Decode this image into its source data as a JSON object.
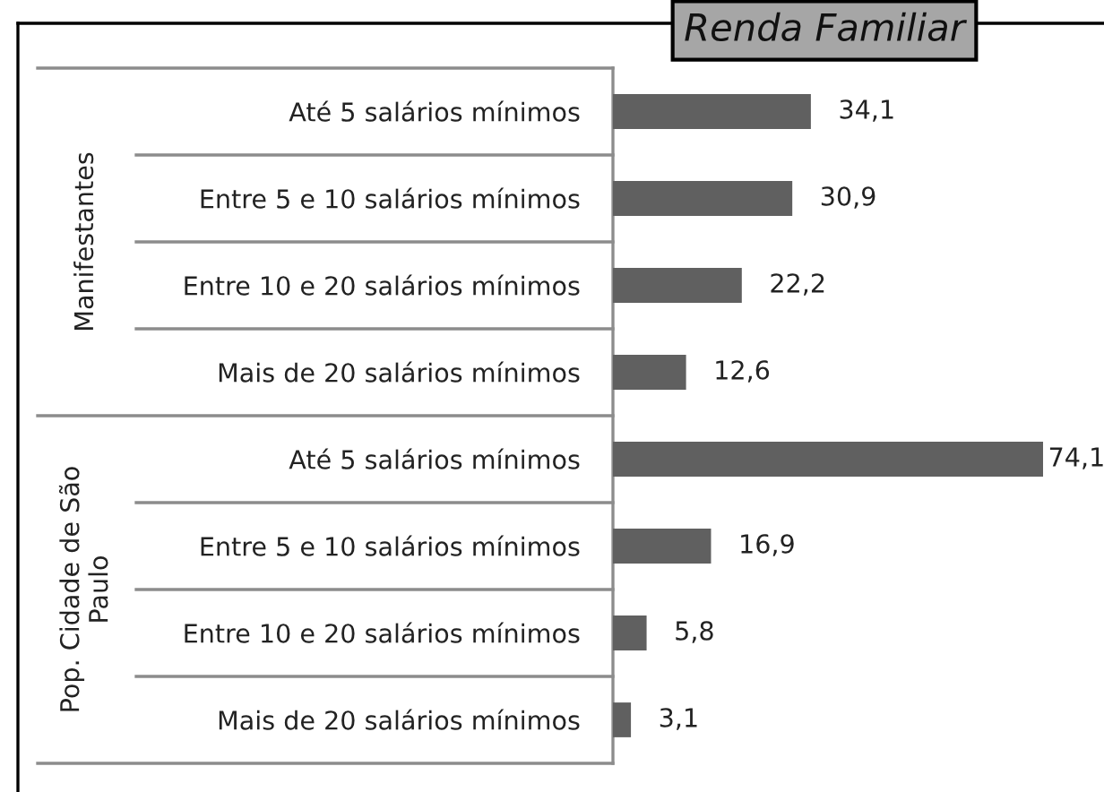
{
  "chart_data": {
    "type": "bar",
    "orientation": "horizontal",
    "title": "Renda Familiar",
    "categories": [
      "Até 5 salários mínimos",
      "Entre 5 e 10 salários mínimos",
      "Entre 10 e 20 salários mínimos",
      "Mais de 20 salários mínimos",
      "Até 5 salários mínimos",
      "Entre 5 e 10 salários mínimos",
      "Entre 10 e 20 salários mínimos",
      "Mais de 20 salários mínimos"
    ],
    "color": "#606060",
    "values": [
      34.1,
      30.9,
      22.2,
      12.6,
      74.1,
      16.9,
      5.8,
      3.1
    ],
    "value_labels": [
      "34,1",
      "30,9",
      "22,2",
      "12,6",
      "74,1",
      "16,9",
      "5,8",
      "3,1"
    ],
    "annotations": [
      "Manifestantes",
      "Pop. Cidade de São Paulo"
    ]
  }
}
